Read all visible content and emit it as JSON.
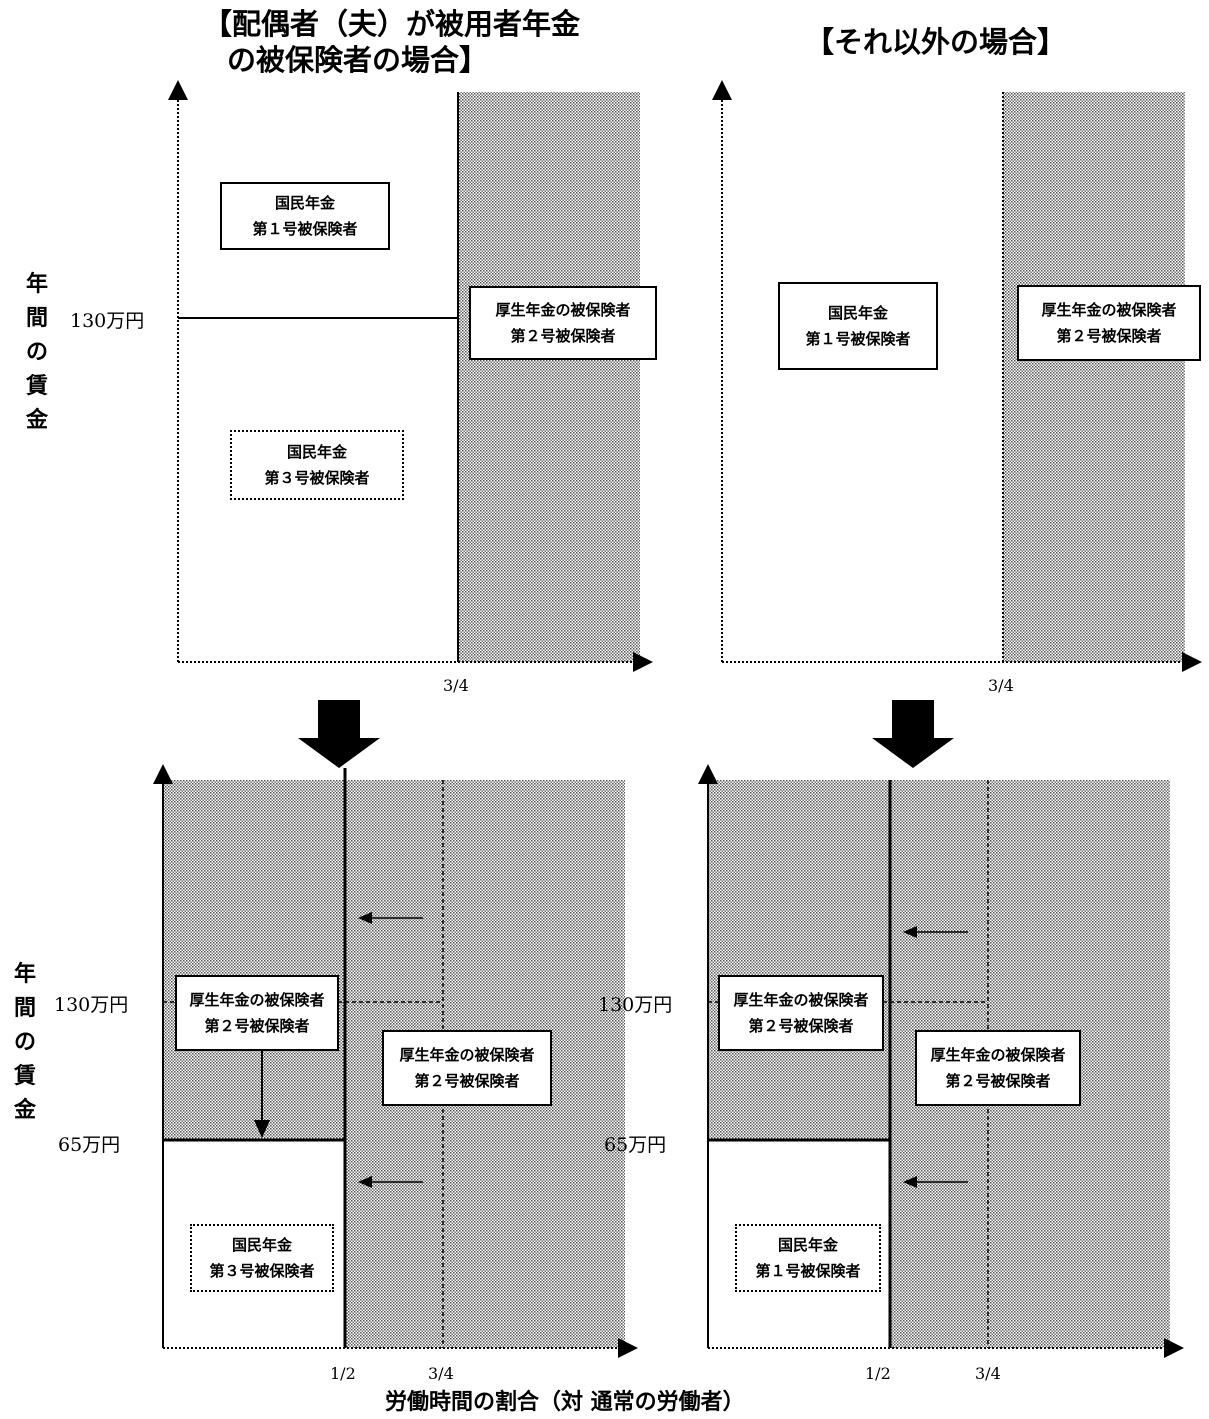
{
  "titles": {
    "left_line1": "【配偶者（夫）が被用者年金",
    "left_line2": "の被保険者の場合】",
    "right": "【それ以外の場合】"
  },
  "y_axis_label": [
    "年",
    "間",
    "の",
    "賃",
    "金"
  ],
  "x_axis_title": "労働時間の割合（対 通常の労働者）",
  "ticks": {
    "y_130": "130万円",
    "y_65": "65万円",
    "x_three_quarters": "3/4",
    "x_half": "1/2"
  },
  "boxes": {
    "np1_line1": "国民年金",
    "np1_line2": "第１号被保険者",
    "np3_line1": "国民年金",
    "np3_line2": "第３号被保険者",
    "ep_line1": "厚生年金の被保険者",
    "ep_line2": "第２号被保険者"
  },
  "colors": {
    "shading_dots": "#555555",
    "line": "#000000",
    "background": "#ffffff"
  }
}
